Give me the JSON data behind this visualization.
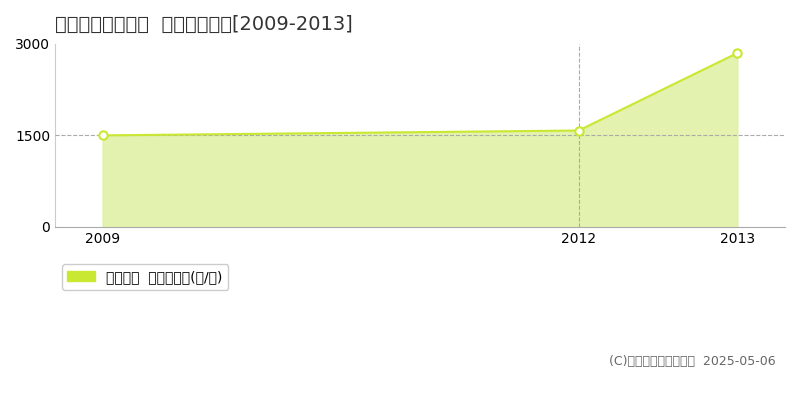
{
  "title": "東伯郡三朝町大谷  農地価格推移[2009-2013]",
  "years": [
    2009,
    2012,
    2013
  ],
  "values": [
    1500,
    1580,
    2850
  ],
  "xlim": [
    2008.7,
    2013.3
  ],
  "ylim": [
    0,
    3000
  ],
  "yticks": [
    0,
    1500,
    3000
  ],
  "xticks": [
    2009,
    2012,
    2013
  ],
  "line_color": "#c8e832",
  "fill_color": "#dff0a0",
  "fill_alpha": 0.85,
  "marker_color": "white",
  "marker_edge_color": "#c8e832",
  "vline_x": 2012,
  "hline_y": 1500,
  "hline_color": "#aaaaaa",
  "vline_color": "#aaaaaa",
  "legend_label": "農地価格  平均坪単価(円/坪)",
  "legend_square_color": "#c8e832",
  "copyright_text": "(C)土地価格ドットコム  2025-05-06",
  "background_color": "#ffffff",
  "title_fontsize": 14,
  "tick_fontsize": 10,
  "legend_fontsize": 10,
  "copyright_fontsize": 9
}
